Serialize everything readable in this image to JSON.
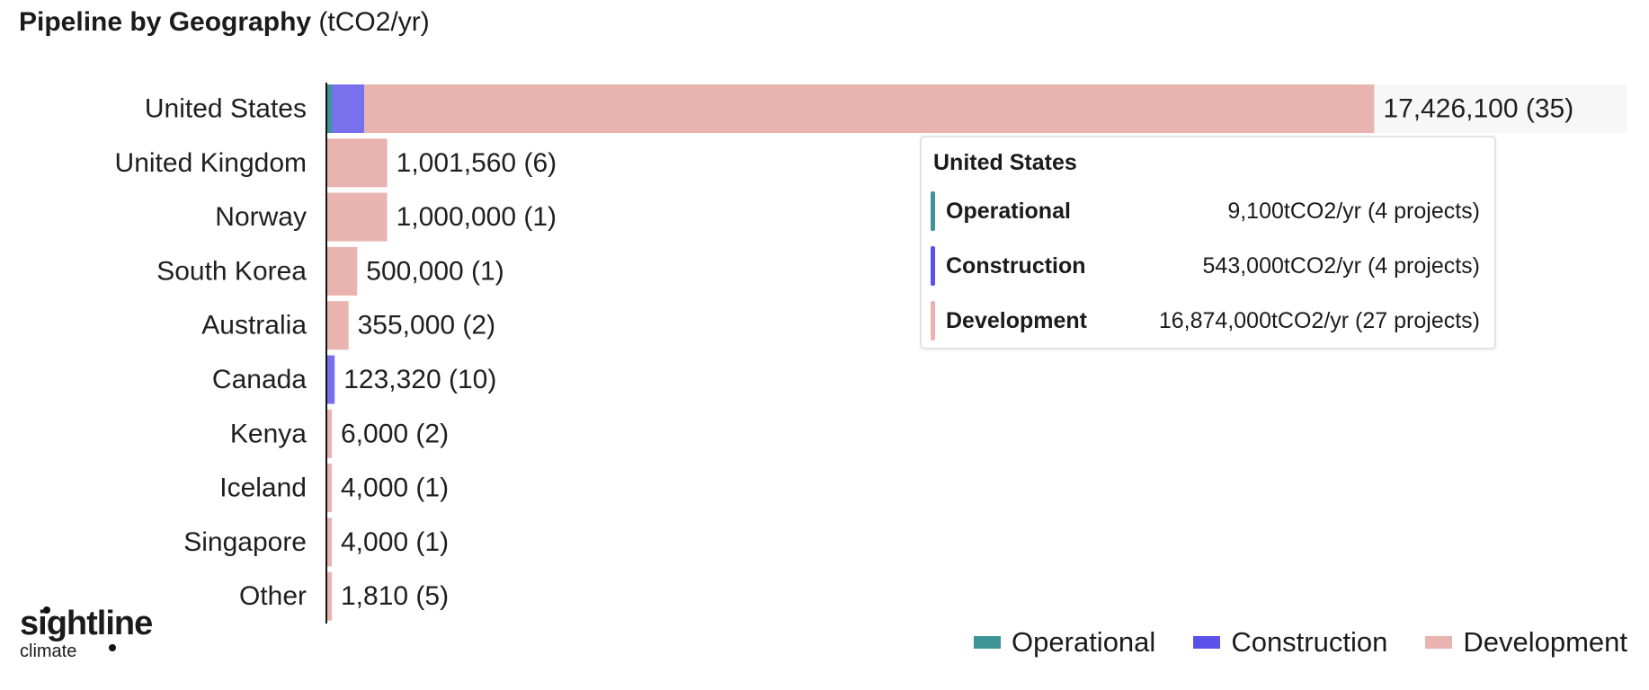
{
  "title": "Pipeline by Geography",
  "title_unit": "(tCO2/yr)",
  "colors": {
    "Operational": "#3d9595",
    "Construction": "#7870ec",
    "Development": "#e9b3af",
    "axis": "#111111",
    "highlight_row": "#f7f7f7"
  },
  "chart_data": {
    "type": "bar",
    "orientation": "horizontal",
    "stacked": true,
    "categories": [
      "United States",
      "United Kingdom",
      "Norway",
      "South Korea",
      "Australia",
      "Canada",
      "Kenya",
      "Iceland",
      "Singapore",
      "Other"
    ],
    "series": [
      {
        "name": "Operational",
        "values": [
          9100,
          0,
          0,
          0,
          0,
          0,
          0,
          0,
          0,
          0
        ]
      },
      {
        "name": "Construction",
        "values": [
          543000,
          0,
          0,
          0,
          0,
          123320,
          0,
          0,
          0,
          0
        ]
      },
      {
        "name": "Development",
        "values": [
          16874000,
          1001560,
          1000000,
          500000,
          355000,
          0,
          6000,
          4000,
          4000,
          1810
        ]
      }
    ],
    "data_labels": [
      "17,426,100 (35)",
      "1,001,560 (6)",
      "1,000,000 (1)",
      "500,000 (1)",
      "355,000 (2)",
      "123,320 (10)",
      "6,000 (2)",
      "4,000 (1)",
      "4,000 (1)",
      "1,810 (5)"
    ],
    "xlim": [
      0,
      17426100
    ],
    "grid": false,
    "legend_position": "bottom-right",
    "highlighted_category": "United States"
  },
  "tooltip": {
    "title": "United States",
    "rows": [
      {
        "name": "Operational",
        "value": "9,100tCO2/yr (4 projects)"
      },
      {
        "name": "Construction",
        "value": "543,000tCO2/yr (4 projects)"
      },
      {
        "name": "Development",
        "value": "16,874,000tCO2/yr (27 projects)"
      }
    ]
  },
  "legend": {
    "items": [
      "Operational",
      "Construction",
      "Development"
    ]
  },
  "logo": {
    "main": "sightline",
    "sub": "climate"
  }
}
